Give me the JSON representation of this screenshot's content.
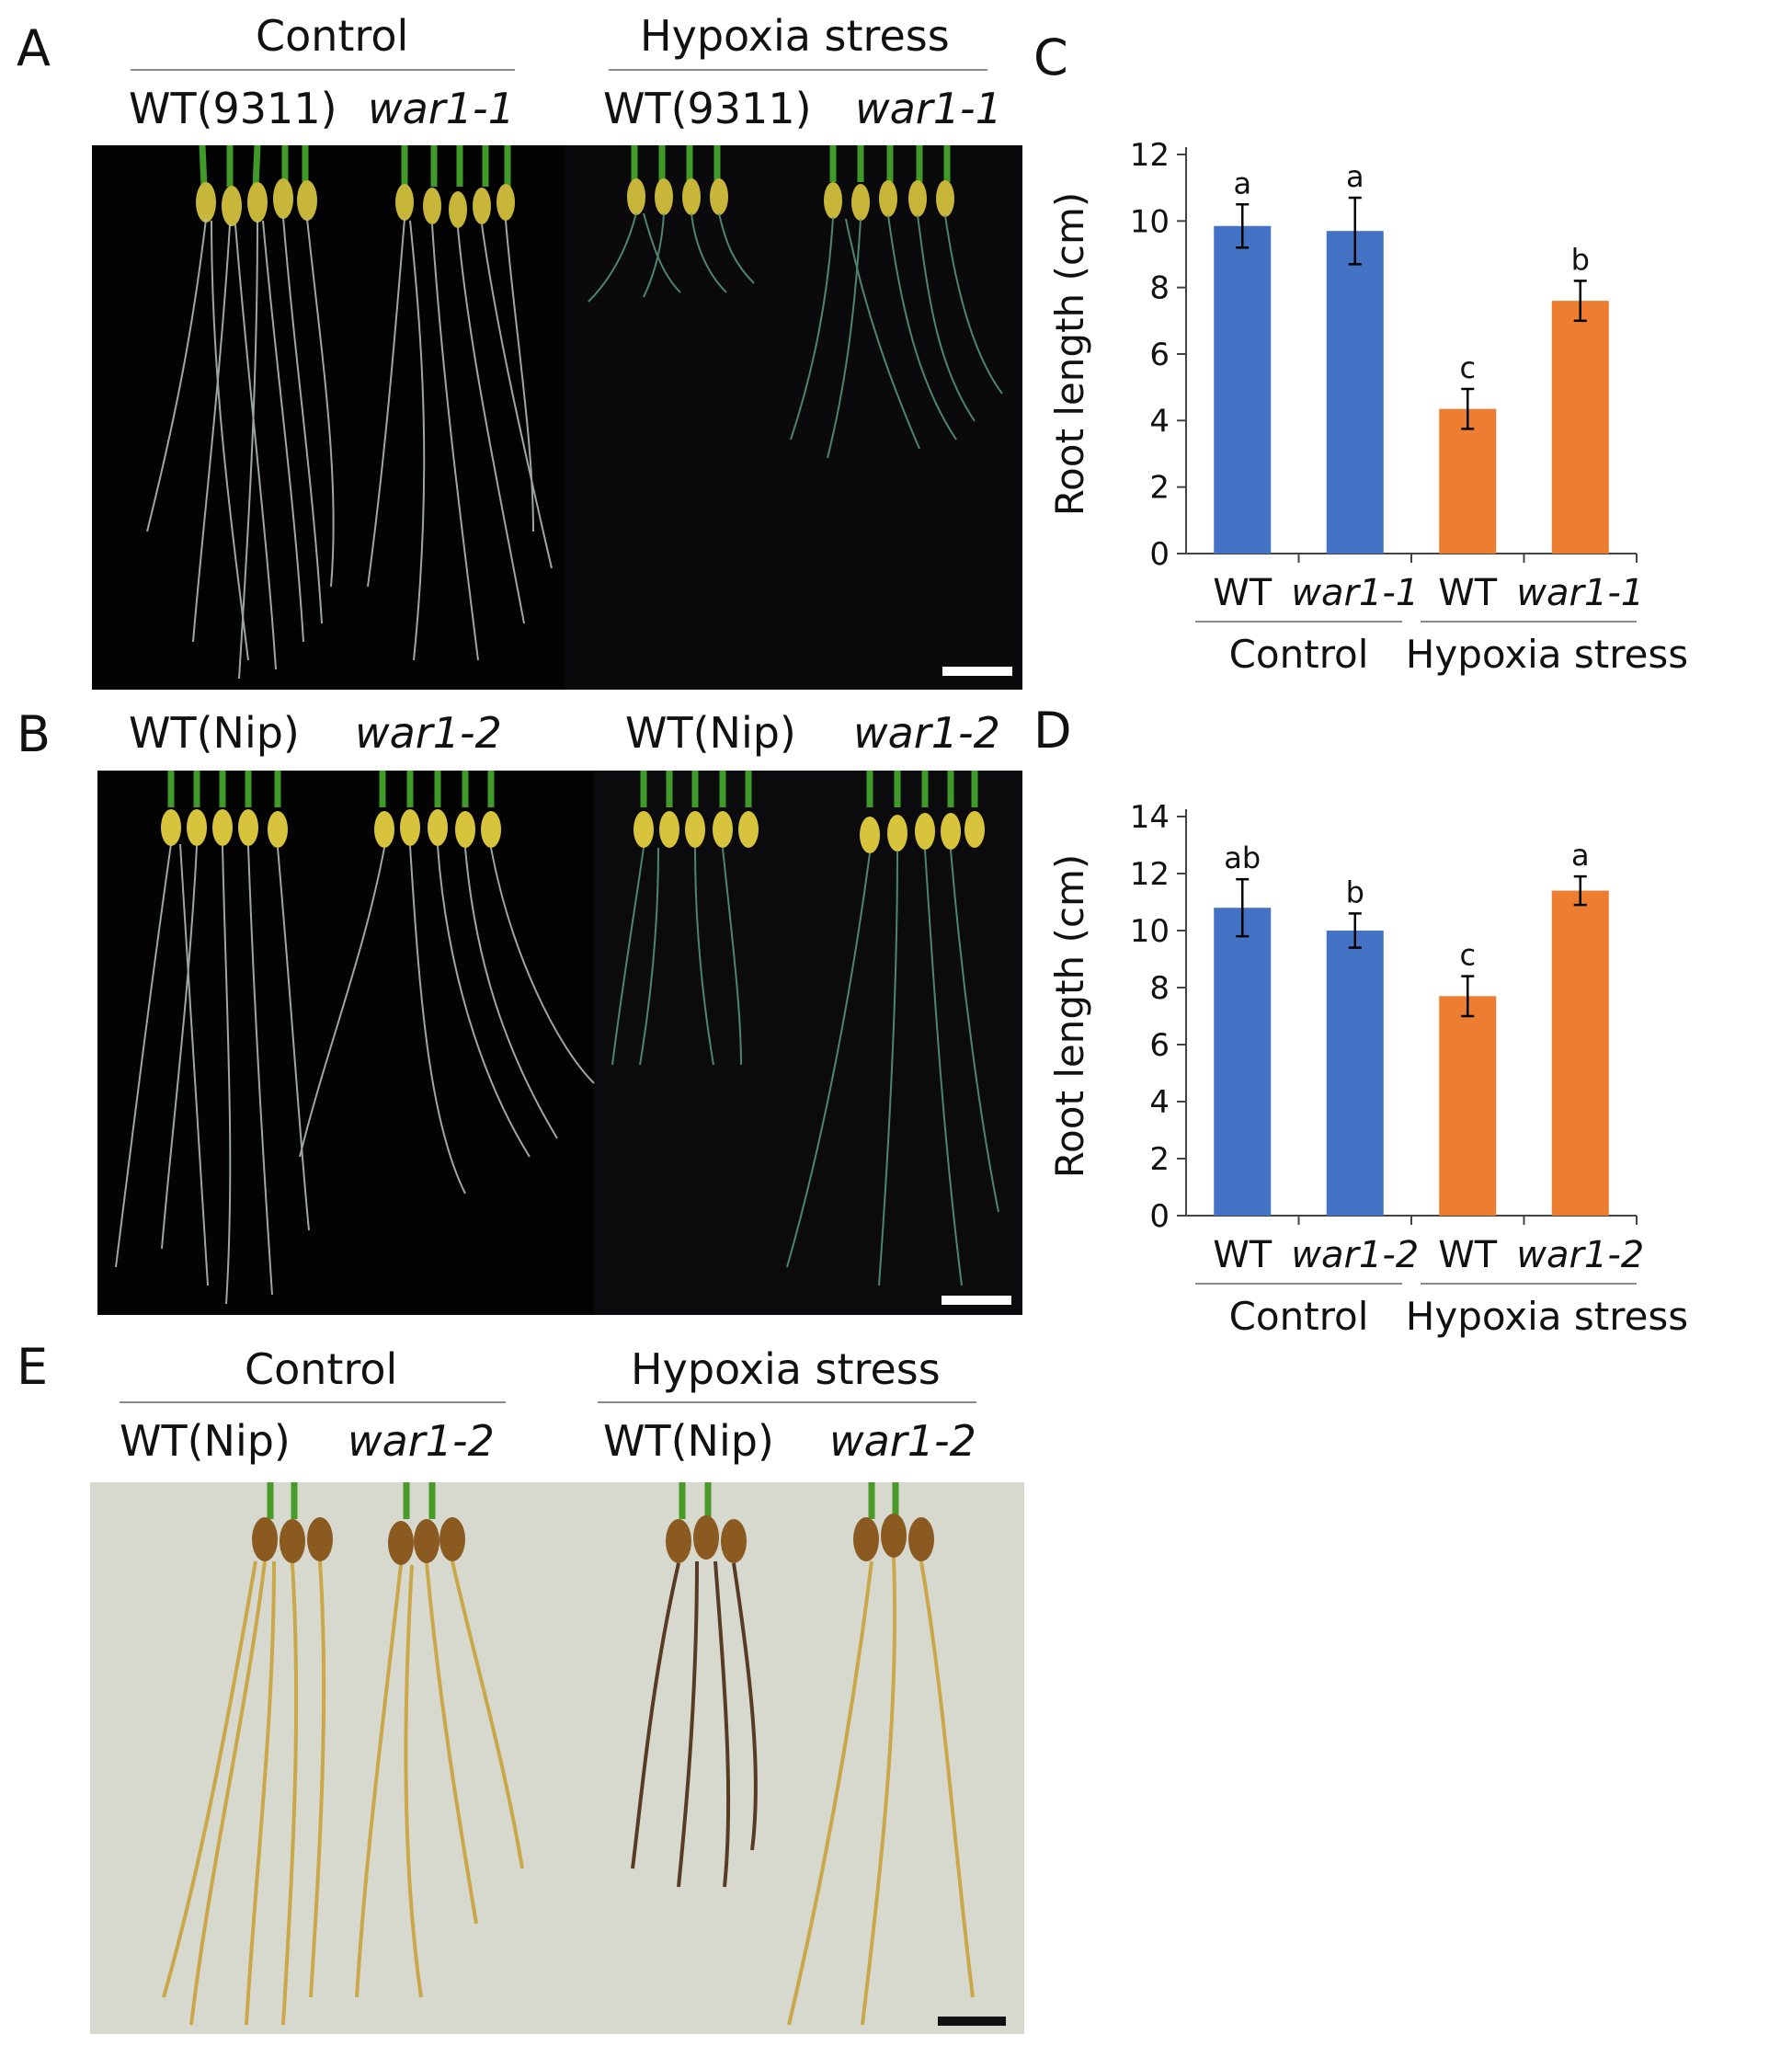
{
  "panels": {
    "A": {
      "label": "A",
      "groups": [
        "Control",
        "Hypoxia stress"
      ],
      "columns": [
        {
          "text": "WT(9311)",
          "italic": false
        },
        {
          "text": "war1-1",
          "italic": true
        },
        {
          "text": "WT(9311)",
          "italic": false
        },
        {
          "text": "war1-1",
          "italic": true
        }
      ]
    },
    "B": {
      "label": "B",
      "columns": [
        {
          "text": "WT(Nip)",
          "italic": false
        },
        {
          "text": "war1-2",
          "italic": true
        },
        {
          "text": "WT(Nip)",
          "italic": false
        },
        {
          "text": "war1-2",
          "italic": true
        }
      ]
    },
    "C": {
      "label": "C"
    },
    "D": {
      "label": "D"
    },
    "E": {
      "label": "E",
      "groups": [
        "Control",
        "Hypoxia stress"
      ],
      "columns": [
        {
          "text": "WT(Nip)",
          "italic": false
        },
        {
          "text": "war1-2",
          "italic": true
        },
        {
          "text": "WT(Nip)",
          "italic": false
        },
        {
          "text": "war1-2",
          "italic": true
        }
      ]
    }
  },
  "colors": {
    "control": "#4472C4",
    "hypoxia": "#ED7D31",
    "photo_dark": "#050505",
    "photo_light": "#d7d9cf"
  },
  "chart_data": [
    {
      "panel": "C",
      "type": "bar",
      "categories": [
        "WT",
        "war1-1",
        "WT",
        "war1-1"
      ],
      "category_italic": [
        false,
        true,
        false,
        true
      ],
      "groups": [
        "Control",
        "Hypoxia stress"
      ],
      "group_of_category": [
        0,
        0,
        1,
        1
      ],
      "values": [
        9.85,
        9.7,
        4.35,
        7.6
      ],
      "errors": [
        0.65,
        1.0,
        0.6,
        0.6
      ],
      "letters": [
        "a",
        "a",
        "c",
        "b"
      ],
      "bar_colors": [
        "#4472C4",
        "#4472C4",
        "#ED7D31",
        "#ED7D31"
      ],
      "ylabel": "Root length (cm)",
      "ylim": [
        0,
        12
      ],
      "yticks": [
        0,
        2,
        4,
        6,
        8,
        10,
        12
      ]
    },
    {
      "panel": "D",
      "type": "bar",
      "categories": [
        "WT",
        "war1-2",
        "WT",
        "war1-2"
      ],
      "category_italic": [
        false,
        true,
        false,
        true
      ],
      "groups": [
        "Control",
        "Hypoxia stress"
      ],
      "group_of_category": [
        0,
        0,
        1,
        1
      ],
      "values": [
        10.8,
        10.0,
        7.7,
        11.4
      ],
      "errors": [
        1.0,
        0.6,
        0.7,
        0.5
      ],
      "letters": [
        "ab",
        "b",
        "c",
        "a"
      ],
      "bar_colors": [
        "#4472C4",
        "#4472C4",
        "#ED7D31",
        "#ED7D31"
      ],
      "ylabel": "Root length (cm)",
      "ylim": [
        0,
        14
      ],
      "yticks": [
        0,
        2,
        4,
        6,
        8,
        10,
        12,
        14
      ]
    }
  ]
}
